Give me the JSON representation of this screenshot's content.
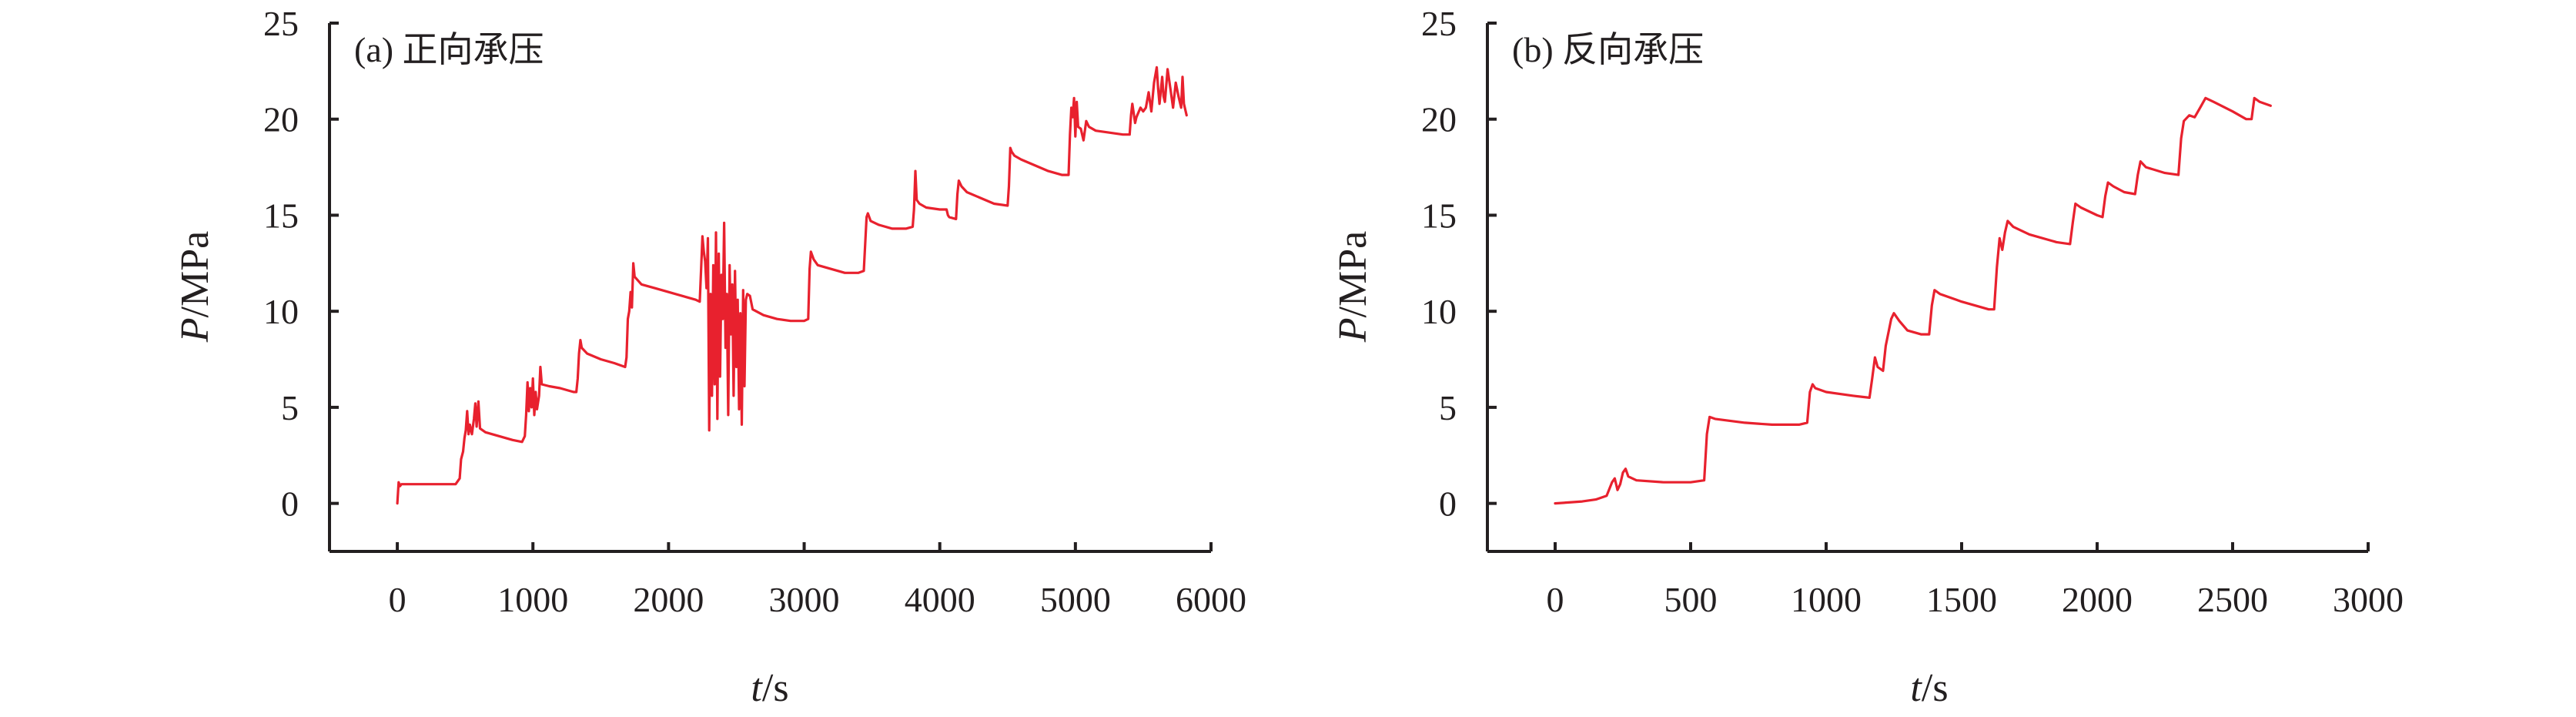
{
  "chart_data": [
    {
      "type": "line",
      "title": "(a) 正向承压",
      "xlabel_italic": "t",
      "xlabel_unit": "/s",
      "ylabel_italic": "P",
      "ylabel_unit": "/MPa",
      "xlim": [
        -500,
        6000
      ],
      "ylim": [
        -2.5,
        25
      ],
      "x_ticks": [
        0,
        1000,
        2000,
        3000,
        4000,
        5000,
        6000
      ],
      "y_ticks": [
        0,
        5,
        10,
        15,
        20,
        25
      ],
      "grid": false,
      "color": "#e8212e",
      "series": [
        {
          "points": [
            [
              0,
              0
            ],
            [
              10,
              1.1
            ],
            [
              20,
              0.9
            ],
            [
              30,
              1.0
            ],
            [
              150,
              1.0
            ],
            [
              300,
              1.0
            ],
            [
              430,
              1.0
            ],
            [
              460,
              1.3
            ],
            [
              470,
              2.3
            ],
            [
              485,
              2.7
            ],
            [
              495,
              3.4
            ],
            [
              505,
              3.8
            ],
            [
              515,
              4.8
            ],
            [
              525,
              3.6
            ],
            [
              535,
              4.1
            ],
            [
              550,
              3.6
            ],
            [
              565,
              4.4
            ],
            [
              575,
              5.2
            ],
            [
              585,
              4.0
            ],
            [
              598,
              5.3
            ],
            [
              610,
              3.9
            ],
            [
              650,
              3.7
            ],
            [
              750,
              3.5
            ],
            [
              850,
              3.3
            ],
            [
              920,
              3.2
            ],
            [
              940,
              3.5
            ],
            [
              950,
              4.6
            ],
            [
              960,
              6.3
            ],
            [
              970,
              4.8
            ],
            [
              980,
              6.0
            ],
            [
              990,
              5.0
            ],
            [
              1000,
              6.5
            ],
            [
              1010,
              4.6
            ],
            [
              1020,
              5.8
            ],
            [
              1030,
              4.9
            ],
            [
              1045,
              5.6
            ],
            [
              1055,
              7.1
            ],
            [
              1065,
              6.2
            ],
            [
              1120,
              6.1
            ],
            [
              1200,
              6.0
            ],
            [
              1300,
              5.8
            ],
            [
              1320,
              5.8
            ],
            [
              1330,
              6.5
            ],
            [
              1340,
              7.8
            ],
            [
              1350,
              8.5
            ],
            [
              1360,
              8.1
            ],
            [
              1400,
              7.8
            ],
            [
              1500,
              7.5
            ],
            [
              1600,
              7.3
            ],
            [
              1680,
              7.1
            ],
            [
              1690,
              7.6
            ],
            [
              1700,
              9.6
            ],
            [
              1710,
              10.0
            ],
            [
              1720,
              11.0
            ],
            [
              1730,
              10.2
            ],
            [
              1740,
              12.5
            ],
            [
              1750,
              11.8
            ],
            [
              1800,
              11.4
            ],
            [
              1900,
              11.2
            ],
            [
              2000,
              11.0
            ],
            [
              2100,
              10.8
            ],
            [
              2200,
              10.6
            ],
            [
              2230,
              10.5
            ],
            [
              2240,
              12.2
            ],
            [
              2250,
              13.9
            ],
            [
              2260,
              13.1
            ],
            [
              2270,
              12.6
            ],
            [
              2280,
              11.2
            ],
            [
              2290,
              13.8
            ],
            [
              2300,
              3.8
            ],
            [
              2310,
              10.9
            ],
            [
              2320,
              5.6
            ],
            [
              2330,
              12.4
            ],
            [
              2340,
              6.2
            ],
            [
              2350,
              14.1
            ],
            [
              2360,
              4.4
            ],
            [
              2370,
              13.0
            ],
            [
              2380,
              6.6
            ],
            [
              2390,
              11.9
            ],
            [
              2400,
              9.6
            ],
            [
              2410,
              14.6
            ],
            [
              2420,
              8.1
            ],
            [
              2430,
              10.9
            ],
            [
              2440,
              4.6
            ],
            [
              2450,
              12.4
            ],
            [
              2460,
              8.8
            ],
            [
              2470,
              11.4
            ],
            [
              2480,
              5.6
            ],
            [
              2490,
              12.1
            ],
            [
              2500,
              7.1
            ],
            [
              2510,
              10.6
            ],
            [
              2520,
              4.9
            ],
            [
              2530,
              9.9
            ],
            [
              2540,
              4.1
            ],
            [
              2550,
              11.1
            ],
            [
              2560,
              6.1
            ],
            [
              2570,
              10.6
            ],
            [
              2580,
              10.9
            ],
            [
              2600,
              10.8
            ],
            [
              2620,
              10.1
            ],
            [
              2700,
              9.8
            ],
            [
              2800,
              9.6
            ],
            [
              2900,
              9.5
            ],
            [
              3000,
              9.5
            ],
            [
              3030,
              9.6
            ],
            [
              3040,
              12.2
            ],
            [
              3050,
              13.1
            ],
            [
              3070,
              12.7
            ],
            [
              3100,
              12.4
            ],
            [
              3200,
              12.2
            ],
            [
              3300,
              12.0
            ],
            [
              3400,
              12.0
            ],
            [
              3440,
              12.1
            ],
            [
              3450,
              13.5
            ],
            [
              3460,
              14.9
            ],
            [
              3470,
              15.1
            ],
            [
              3490,
              14.7
            ],
            [
              3550,
              14.5
            ],
            [
              3650,
              14.3
            ],
            [
              3750,
              14.3
            ],
            [
              3800,
              14.4
            ],
            [
              3810,
              15.3
            ],
            [
              3820,
              17.3
            ],
            [
              3830,
              15.8
            ],
            [
              3850,
              15.6
            ],
            [
              3900,
              15.4
            ],
            [
              4000,
              15.3
            ],
            [
              4050,
              15.3
            ],
            [
              4060,
              15.0
            ],
            [
              4070,
              14.9
            ],
            [
              4120,
              14.8
            ],
            [
              4130,
              16.1
            ],
            [
              4140,
              16.8
            ],
            [
              4160,
              16.5
            ],
            [
              4200,
              16.2
            ],
            [
              4300,
              15.9
            ],
            [
              4400,
              15.6
            ],
            [
              4500,
              15.5
            ],
            [
              4510,
              16.5
            ],
            [
              4520,
              18.5
            ],
            [
              4530,
              18.3
            ],
            [
              4550,
              18.1
            ],
            [
              4600,
              17.9
            ],
            [
              4700,
              17.6
            ],
            [
              4800,
              17.3
            ],
            [
              4900,
              17.1
            ],
            [
              4950,
              17.1
            ],
            [
              4960,
              19.2
            ],
            [
              4970,
              20.6
            ],
            [
              4980,
              20.1
            ],
            [
              4990,
              21.1
            ],
            [
              5000,
              19.1
            ],
            [
              5010,
              20.9
            ],
            [
              5020,
              19.6
            ],
            [
              5040,
              19.5
            ],
            [
              5060,
              18.9
            ],
            [
              5080,
              19.9
            ],
            [
              5100,
              19.6
            ],
            [
              5150,
              19.4
            ],
            [
              5250,
              19.3
            ],
            [
              5350,
              19.2
            ],
            [
              5400,
              19.2
            ],
            [
              5410,
              20.2
            ],
            [
              5420,
              20.8
            ],
            [
              5440,
              19.8
            ],
            [
              5450,
              20.1
            ],
            [
              5480,
              20.6
            ],
            [
              5500,
              20.4
            ],
            [
              5520,
              20.6
            ],
            [
              5540,
              21.4
            ],
            [
              5560,
              20.4
            ],
            [
              5580,
              21.9
            ],
            [
              5600,
              22.7
            ],
            [
              5610,
              21.6
            ],
            [
              5620,
              20.8
            ],
            [
              5640,
              22.2
            ],
            [
              5650,
              21.2
            ],
            [
              5660,
              20.9
            ],
            [
              5680,
              22.6
            ],
            [
              5700,
              21.6
            ],
            [
              5720,
              20.6
            ],
            [
              5740,
              21.9
            ],
            [
              5760,
              21.2
            ],
            [
              5780,
              20.6
            ],
            [
              5790,
              22.2
            ],
            [
              5800,
              20.8
            ],
            [
              5820,
              20.2
            ]
          ]
        }
      ]
    },
    {
      "type": "line",
      "title": "(b) 反向承压",
      "xlabel_italic": "t",
      "xlabel_unit": "/s",
      "ylabel_italic": "P",
      "ylabel_unit": "/MPa",
      "xlim": [
        -250,
        3000
      ],
      "ylim": [
        -2.5,
        25
      ],
      "x_ticks": [
        0,
        500,
        1000,
        1500,
        2000,
        2500,
        3000
      ],
      "y_ticks": [
        0,
        5,
        10,
        15,
        20,
        25
      ],
      "grid": false,
      "color": "#e8212e",
      "series": [
        {
          "points": [
            [
              0,
              0
            ],
            [
              50,
              0.05
            ],
            [
              100,
              0.1
            ],
            [
              150,
              0.2
            ],
            [
              190,
              0.4
            ],
            [
              210,
              1.1
            ],
            [
              220,
              1.3
            ],
            [
              230,
              0.7
            ],
            [
              240,
              1.0
            ],
            [
              250,
              1.6
            ],
            [
              260,
              1.8
            ],
            [
              270,
              1.4
            ],
            [
              300,
              1.2
            ],
            [
              400,
              1.1
            ],
            [
              500,
              1.1
            ],
            [
              550,
              1.2
            ],
            [
              560,
              3.6
            ],
            [
              570,
              4.5
            ],
            [
              590,
              4.4
            ],
            [
              700,
              4.2
            ],
            [
              800,
              4.1
            ],
            [
              900,
              4.1
            ],
            [
              930,
              4.2
            ],
            [
              940,
              5.8
            ],
            [
              950,
              6.2
            ],
            [
              960,
              6.0
            ],
            [
              1000,
              5.8
            ],
            [
              1100,
              5.6
            ],
            [
              1160,
              5.5
            ],
            [
              1170,
              6.5
            ],
            [
              1180,
              7.6
            ],
            [
              1190,
              7.1
            ],
            [
              1210,
              6.9
            ],
            [
              1220,
              8.2
            ],
            [
              1240,
              9.6
            ],
            [
              1250,
              9.9
            ],
            [
              1270,
              9.5
            ],
            [
              1300,
              9.0
            ],
            [
              1350,
              8.8
            ],
            [
              1380,
              8.8
            ],
            [
              1390,
              10.3
            ],
            [
              1400,
              11.1
            ],
            [
              1420,
              10.9
            ],
            [
              1500,
              10.5
            ],
            [
              1600,
              10.1
            ],
            [
              1620,
              10.1
            ],
            [
              1630,
              12.3
            ],
            [
              1640,
              13.8
            ],
            [
              1650,
              13.2
            ],
            [
              1660,
              14.1
            ],
            [
              1670,
              14.7
            ],
            [
              1690,
              14.4
            ],
            [
              1750,
              14.0
            ],
            [
              1850,
              13.6
            ],
            [
              1900,
              13.5
            ],
            [
              1910,
              14.6
            ],
            [
              1920,
              15.6
            ],
            [
              1940,
              15.4
            ],
            [
              2000,
              15.0
            ],
            [
              2020,
              14.9
            ],
            [
              2030,
              16.0
            ],
            [
              2040,
              16.7
            ],
            [
              2060,
              16.5
            ],
            [
              2100,
              16.2
            ],
            [
              2140,
              16.1
            ],
            [
              2150,
              17.1
            ],
            [
              2160,
              17.8
            ],
            [
              2180,
              17.5
            ],
            [
              2250,
              17.2
            ],
            [
              2300,
              17.1
            ],
            [
              2310,
              19.0
            ],
            [
              2320,
              19.9
            ],
            [
              2340,
              20.2
            ],
            [
              2360,
              20.1
            ],
            [
              2380,
              20.6
            ],
            [
              2400,
              21.1
            ],
            [
              2430,
              20.9
            ],
            [
              2500,
              20.4
            ],
            [
              2550,
              20.0
            ],
            [
              2570,
              20.0
            ],
            [
              2580,
              21.1
            ],
            [
              2600,
              20.9
            ],
            [
              2640,
              20.7
            ]
          ]
        }
      ]
    }
  ]
}
